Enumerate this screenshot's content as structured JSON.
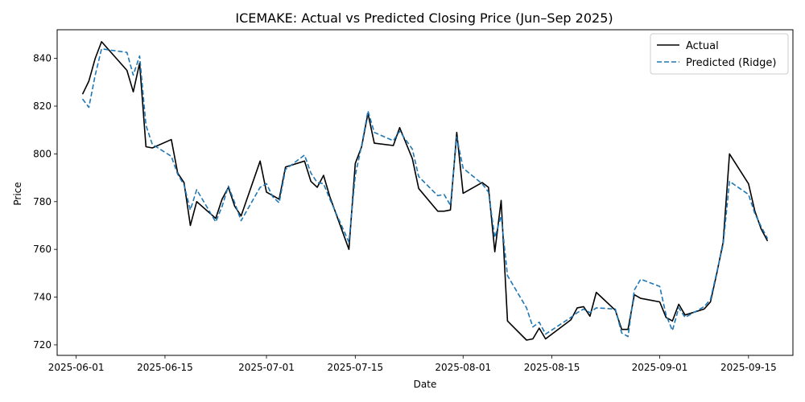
{
  "chart_data": {
    "type": "line",
    "title": "ICEMAKE: Actual vs Predicted Closing Price (Jun–Sep 2025)",
    "xlabel": "Date",
    "ylabel": "Price",
    "x_ticks": [
      "2025-06-01",
      "2025-06-15",
      "2025-07-01",
      "2025-07-15",
      "2025-08-01",
      "2025-08-15",
      "2025-09-01",
      "2025-09-15"
    ],
    "y_ticks": [
      720,
      740,
      760,
      780,
      800,
      820,
      840
    ],
    "xlim": [
      "2025-05-29",
      "2025-09-22"
    ],
    "ylim": [
      715.6,
      852
    ],
    "legend_position": "top-right",
    "grid": false,
    "series": [
      {
        "name": "Actual",
        "color": "#000000",
        "style": "solid",
        "points": [
          [
            "2025-06-02",
            825
          ],
          [
            "2025-06-03",
            830.5
          ],
          [
            "2025-06-04",
            840
          ],
          [
            "2025-06-05",
            847
          ],
          [
            "2025-06-09",
            835
          ],
          [
            "2025-06-10",
            826
          ],
          [
            "2025-06-11",
            838
          ],
          [
            "2025-06-12",
            803
          ],
          [
            "2025-06-13",
            802.5
          ],
          [
            "2025-06-16",
            806
          ],
          [
            "2025-06-17",
            792
          ],
          [
            "2025-06-18",
            788
          ],
          [
            "2025-06-19",
            770
          ],
          [
            "2025-06-20",
            780
          ],
          [
            "2025-06-23",
            773
          ],
          [
            "2025-06-24",
            781
          ],
          [
            "2025-06-25",
            786
          ],
          [
            "2025-06-26",
            778
          ],
          [
            "2025-06-27",
            774
          ],
          [
            "2025-06-30",
            797
          ],
          [
            "2025-07-01",
            784
          ],
          [
            "2025-07-02",
            782.5
          ],
          [
            "2025-07-03",
            781
          ],
          [
            "2025-07-04",
            794.5
          ],
          [
            "2025-07-07",
            797
          ],
          [
            "2025-07-08",
            788.5
          ],
          [
            "2025-07-09",
            786
          ],
          [
            "2025-07-10",
            791
          ],
          [
            "2025-07-11",
            782
          ],
          [
            "2025-07-14",
            760
          ],
          [
            "2025-07-15",
            796
          ],
          [
            "2025-07-16",
            803
          ],
          [
            "2025-07-17",
            817
          ],
          [
            "2025-07-18",
            804.5
          ],
          [
            "2025-07-21",
            803.5
          ],
          [
            "2025-07-22",
            811
          ],
          [
            "2025-07-24",
            798
          ],
          [
            "2025-07-25",
            785.5
          ],
          [
            "2025-07-28",
            776
          ],
          [
            "2025-07-29",
            776
          ],
          [
            "2025-07-30",
            776.5
          ],
          [
            "2025-07-31",
            809
          ],
          [
            "2025-08-01",
            783.5
          ],
          [
            "2025-08-04",
            788
          ],
          [
            "2025-08-05",
            786
          ],
          [
            "2025-08-06",
            759
          ],
          [
            "2025-08-07",
            780.5
          ],
          [
            "2025-08-08",
            730
          ],
          [
            "2025-08-11",
            722
          ],
          [
            "2025-08-12",
            722.5
          ],
          [
            "2025-08-13",
            727
          ],
          [
            "2025-08-14",
            722.5
          ],
          [
            "2025-08-18",
            730.5
          ],
          [
            "2025-08-19",
            735.5
          ],
          [
            "2025-08-20",
            736
          ],
          [
            "2025-08-21",
            732
          ],
          [
            "2025-08-22",
            742
          ],
          [
            "2025-08-25",
            734.5
          ],
          [
            "2025-08-26",
            726.5
          ],
          [
            "2025-08-27",
            726.5
          ],
          [
            "2025-08-28",
            741
          ],
          [
            "2025-08-29",
            739.5
          ],
          [
            "2025-09-01",
            738
          ],
          [
            "2025-09-02",
            731.5
          ],
          [
            "2025-09-03",
            730
          ],
          [
            "2025-09-04",
            737
          ],
          [
            "2025-09-05",
            732.5
          ],
          [
            "2025-09-08",
            735
          ],
          [
            "2025-09-09",
            738
          ],
          [
            "2025-09-10",
            750
          ],
          [
            "2025-09-11",
            763
          ],
          [
            "2025-09-12",
            800
          ],
          [
            "2025-09-15",
            787.5
          ],
          [
            "2025-09-16",
            776
          ],
          [
            "2025-09-17",
            768.5
          ],
          [
            "2025-09-18",
            763.5
          ]
        ]
      },
      {
        "name": "Predicted (Ridge)",
        "color": "#1f77b4",
        "style": "dashed",
        "points": [
          [
            "2025-06-02",
            823
          ],
          [
            "2025-06-03",
            819.5
          ],
          [
            "2025-06-04",
            833
          ],
          [
            "2025-06-05",
            844
          ],
          [
            "2025-06-09",
            842.5
          ],
          [
            "2025-06-10",
            833
          ],
          [
            "2025-06-11",
            841
          ],
          [
            "2025-06-12",
            812
          ],
          [
            "2025-06-13",
            804
          ],
          [
            "2025-06-16",
            799
          ],
          [
            "2025-06-17",
            791.5
          ],
          [
            "2025-06-18",
            787
          ],
          [
            "2025-06-19",
            776.5
          ],
          [
            "2025-06-20",
            785
          ],
          [
            "2025-06-23",
            771.5
          ],
          [
            "2025-06-24",
            778
          ],
          [
            "2025-06-25",
            786.5
          ],
          [
            "2025-06-26",
            779.5
          ],
          [
            "2025-06-27",
            772
          ],
          [
            "2025-06-30",
            786
          ],
          [
            "2025-07-01",
            787.5
          ],
          [
            "2025-07-02",
            782
          ],
          [
            "2025-07-03",
            779.5
          ],
          [
            "2025-07-04",
            793.5
          ],
          [
            "2025-07-07",
            799.5
          ],
          [
            "2025-07-08",
            792
          ],
          [
            "2025-07-09",
            788
          ],
          [
            "2025-07-10",
            787.5
          ],
          [
            "2025-07-11",
            781
          ],
          [
            "2025-07-14",
            763
          ],
          [
            "2025-07-15",
            791
          ],
          [
            "2025-07-16",
            803.5
          ],
          [
            "2025-07-17",
            818
          ],
          [
            "2025-07-18",
            809
          ],
          [
            "2025-07-21",
            805.5
          ],
          [
            "2025-07-22",
            809.5
          ],
          [
            "2025-07-24",
            802
          ],
          [
            "2025-07-25",
            790.5
          ],
          [
            "2025-07-28",
            782.5
          ],
          [
            "2025-07-29",
            783
          ],
          [
            "2025-07-30",
            778.5
          ],
          [
            "2025-07-31",
            807
          ],
          [
            "2025-08-01",
            794
          ],
          [
            "2025-08-04",
            787.5
          ],
          [
            "2025-08-05",
            784
          ],
          [
            "2025-08-06",
            765
          ],
          [
            "2025-08-07",
            774
          ],
          [
            "2025-08-08",
            749
          ],
          [
            "2025-08-11",
            735.5
          ],
          [
            "2025-08-12",
            727.5
          ],
          [
            "2025-08-13",
            729.5
          ],
          [
            "2025-08-14",
            724.5
          ],
          [
            "2025-08-18",
            731.5
          ],
          [
            "2025-08-19",
            733.5
          ],
          [
            "2025-08-20",
            735
          ],
          [
            "2025-08-21",
            733.5
          ],
          [
            "2025-08-22",
            735.5
          ],
          [
            "2025-08-25",
            735
          ],
          [
            "2025-08-26",
            725
          ],
          [
            "2025-08-27",
            723.5
          ],
          [
            "2025-08-28",
            743
          ],
          [
            "2025-08-29",
            747.5
          ],
          [
            "2025-09-01",
            744.5
          ],
          [
            "2025-09-02",
            732.5
          ],
          [
            "2025-09-03",
            726
          ],
          [
            "2025-09-04",
            735.5
          ],
          [
            "2025-09-05",
            731.5
          ],
          [
            "2025-09-08",
            736
          ],
          [
            "2025-09-09",
            739
          ],
          [
            "2025-09-10",
            750.5
          ],
          [
            "2025-09-11",
            762
          ],
          [
            "2025-09-12",
            788.5
          ],
          [
            "2025-09-15",
            783
          ],
          [
            "2025-09-16",
            775
          ],
          [
            "2025-09-17",
            769.5
          ],
          [
            "2025-09-18",
            764.5
          ]
        ]
      }
    ]
  }
}
